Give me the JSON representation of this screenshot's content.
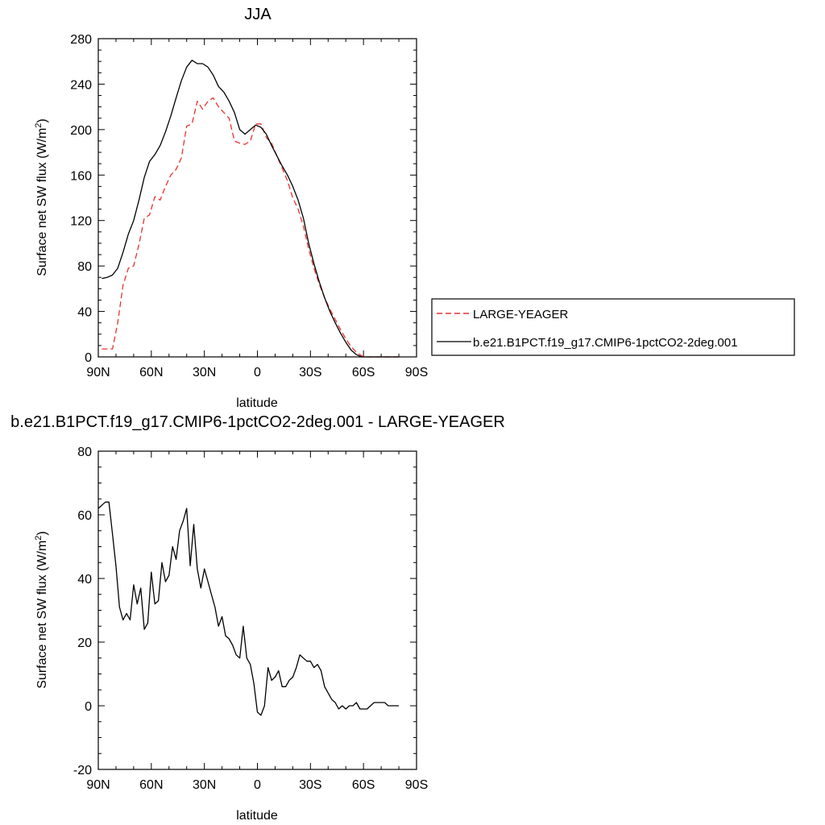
{
  "chart_data": [
    {
      "type": "line",
      "title": "JJA",
      "xlabel": "latitude",
      "ylabel": "Surface net SW flux (W/m",
      "ylabel_sup": "2",
      "ylabel_close": ")",
      "xlim": [
        90,
        -90
      ],
      "ylim": [
        0,
        280
      ],
      "x_ticks": [
        90,
        60,
        30,
        0,
        -30,
        -60,
        -90
      ],
      "x_tick_labels": [
        "90N",
        "60N",
        "30N",
        "0",
        "30S",
        "60S",
        "90S"
      ],
      "y_ticks": [
        0,
        40,
        80,
        120,
        160,
        200,
        240,
        280
      ],
      "y_tick_labels": [
        "0",
        "40",
        "80",
        "120",
        "160",
        "200",
        "240",
        "280"
      ],
      "legend_position": "right",
      "series": [
        {
          "name": "LARGE-YEAGER",
          "color": "#e8322e",
          "dash": "dashed",
          "x": [
            88,
            85,
            82,
            79,
            76,
            73,
            70,
            67,
            64,
            61,
            58,
            55,
            52,
            49,
            46,
            43,
            40,
            37,
            34,
            31,
            28,
            25,
            22,
            19,
            16,
            13,
            10,
            7,
            4,
            1,
            -2,
            -5,
            -8,
            -11,
            -14,
            -17,
            -20,
            -23,
            -26,
            -29,
            -32,
            -35,
            -38,
            -41,
            -44,
            -47,
            -50,
            -53,
            -56,
            -59,
            -62,
            -65,
            -68,
            -71,
            -74,
            -77,
            -80
          ],
          "y": [
            7,
            7,
            7,
            30,
            63,
            78,
            80,
            99,
            122,
            125,
            141,
            138,
            150,
            160,
            165,
            175,
            203,
            205,
            225,
            218,
            225,
            228,
            220,
            215,
            210,
            190,
            188,
            187,
            190,
            205,
            205,
            193,
            188,
            177,
            166,
            155,
            140,
            130,
            115,
            95,
            78,
            64,
            52,
            42,
            33,
            24,
            16,
            9,
            4,
            1,
            0,
            0,
            0,
            0,
            0,
            0,
            0
          ]
        },
        {
          "name": "b.e21.B1PCT.f19_g17.CMIP6-1pctCO2-2deg.001",
          "color": "#000000",
          "dash": "solid",
          "x": [
            88,
            85,
            82,
            79,
            76,
            73,
            70,
            67,
            64,
            61,
            58,
            55,
            52,
            49,
            46,
            43,
            40,
            37,
            34,
            31,
            28,
            25,
            22,
            19,
            16,
            13,
            10,
            7,
            4,
            1,
            -2,
            -5,
            -8,
            -11,
            -14,
            -17,
            -20,
            -23,
            -26,
            -29,
            -32,
            -35,
            -38,
            -41,
            -44,
            -47,
            -50,
            -53,
            -56,
            -59,
            -62,
            -65,
            -68,
            -71,
            -74,
            -77,
            -80
          ],
          "y": [
            69,
            70,
            72,
            78,
            92,
            108,
            120,
            138,
            158,
            172,
            178,
            186,
            198,
            212,
            228,
            243,
            255,
            261,
            258,
            258,
            255,
            248,
            238,
            233,
            225,
            215,
            200,
            196,
            200,
            204,
            202,
            196,
            186,
            177,
            168,
            160,
            150,
            138,
            122,
            100,
            82,
            66,
            52,
            40,
            30,
            21,
            13,
            6,
            2,
            0,
            0,
            0,
            0,
            0,
            0,
            0,
            0
          ]
        }
      ]
    },
    {
      "type": "line",
      "title": "b.e21.B1PCT.f19_g17.CMIP6-1pctCO2-2deg.001 - LARGE-YEAGER",
      "xlabel": "latitude",
      "ylabel": "Surface net SW flux (W/m",
      "ylabel_sup": "2",
      "ylabel_close": ")",
      "xlim": [
        90,
        -90
      ],
      "ylim": [
        -20,
        80
      ],
      "x_ticks": [
        90,
        60,
        30,
        0,
        -30,
        -60,
        -90
      ],
      "x_tick_labels": [
        "90N",
        "60N",
        "30N",
        "0",
        "30S",
        "60S",
        "90S"
      ],
      "y_ticks": [
        -20,
        0,
        20,
        40,
        60,
        80
      ],
      "y_tick_labels": [
        "-20",
        "0",
        "20",
        "40",
        "60",
        "80"
      ],
      "series": [
        {
          "color": "#000000",
          "dash": "solid",
          "x": [
            90,
            88,
            86,
            84,
            82,
            80,
            78,
            76,
            74,
            72,
            70,
            68,
            66,
            64,
            62,
            60,
            58,
            56,
            54,
            52,
            50,
            48,
            46,
            44,
            42,
            40,
            38,
            36,
            34,
            32,
            30,
            28,
            26,
            24,
            22,
            20,
            18,
            16,
            14,
            12,
            10,
            8,
            6,
            4,
            2,
            0,
            -2,
            -4,
            -6,
            -8,
            -10,
            -12,
            -14,
            -16,
            -18,
            -20,
            -22,
            -24,
            -26,
            -28,
            -30,
            -32,
            -34,
            -36,
            -38,
            -40,
            -42,
            -44,
            -46,
            -48,
            -50,
            -52,
            -54,
            -56,
            -58,
            -60,
            -62,
            -64,
            -66,
            -68,
            -70,
            -72,
            -74,
            -76,
            -78,
            -80
          ],
          "y": [
            62,
            63,
            64,
            64,
            54,
            44,
            31,
            27,
            29,
            27,
            38,
            32,
            37,
            24,
            26,
            42,
            32,
            33,
            45,
            39,
            41,
            50,
            46,
            55,
            58,
            62,
            44,
            57,
            43,
            37,
            43,
            39,
            35,
            31,
            25,
            28,
            22,
            21,
            19,
            16,
            15,
            25,
            15,
            13,
            7,
            -2,
            -3,
            0,
            12,
            8,
            9,
            11,
            6,
            6,
            8,
            9,
            12,
            16,
            15,
            14,
            14,
            12,
            13,
            11,
            6,
            4,
            2,
            1,
            -1,
            0,
            -1,
            0,
            0,
            1,
            -1,
            -1,
            -1,
            0,
            1,
            1,
            1,
            1,
            0,
            0,
            0,
            0
          ]
        }
      ]
    }
  ]
}
